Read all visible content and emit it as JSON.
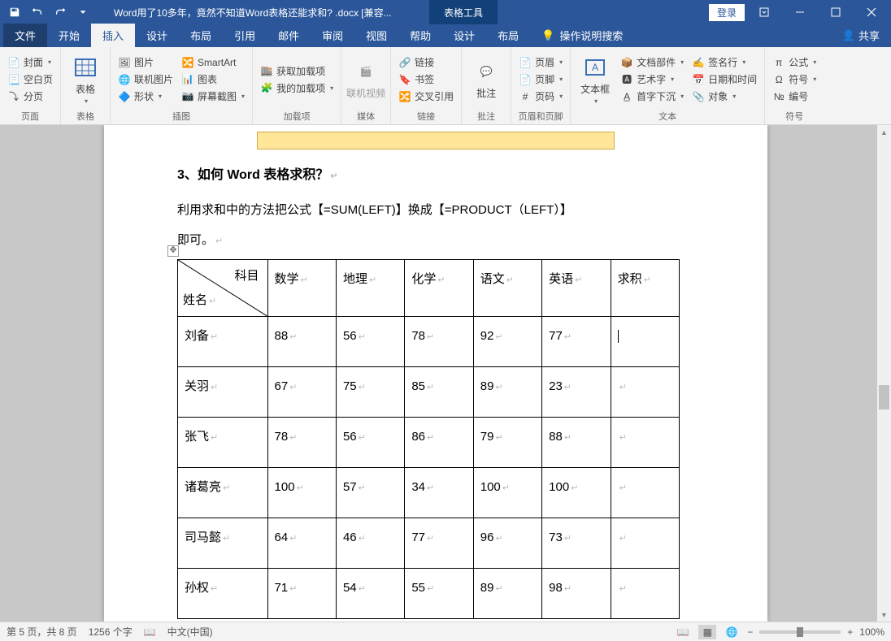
{
  "title_bar": {
    "document_title": "Word用了10多年，竟然不知道Word表格还能求和? .docx [兼容...",
    "context_tab": "表格工具",
    "login": "登录"
  },
  "tabs": {
    "file": "文件",
    "home": "开始",
    "insert": "插入",
    "design": "设计",
    "layout": "布局",
    "references": "引用",
    "mailings": "邮件",
    "review": "审阅",
    "view": "视图",
    "help": "帮助",
    "tbl_design": "设计",
    "tbl_layout": "布局",
    "tell_me": "操作说明搜索",
    "share": "共享"
  },
  "ribbon": {
    "pages": {
      "cover": "封面",
      "blank": "空白页",
      "break": "分页",
      "label": "页面"
    },
    "tables": {
      "table": "表格",
      "label": "表格"
    },
    "illustrations": {
      "picture": "图片",
      "online_pic": "联机图片",
      "shapes": "形状",
      "smartart": "SmartArt",
      "chart": "图表",
      "screenshot": "屏幕截图",
      "label": "插图"
    },
    "addins": {
      "get": "获取加载项",
      "my": "我的加载项",
      "label": "加载项"
    },
    "media": {
      "video": "联机视频",
      "label": "媒体"
    },
    "links": {
      "link": "链接",
      "bookmark": "书签",
      "crossref": "交叉引用",
      "label": "链接"
    },
    "comments": {
      "comment": "批注",
      "label": "批注"
    },
    "headerfooter": {
      "header": "页眉",
      "footer": "页脚",
      "pagenum": "页码",
      "label": "页眉和页脚"
    },
    "text": {
      "textbox": "文本框",
      "parts": "文档部件",
      "wordart": "艺术字",
      "dropcap": "首字下沉",
      "sigline": "签名行",
      "datetime": "日期和时间",
      "object": "对象",
      "label": "文本"
    },
    "symbols": {
      "equation": "公式",
      "symbol": "符号",
      "number": "编号",
      "label": "符号"
    }
  },
  "document": {
    "heading": "3、如何 Word 表格求积？",
    "para1": "利用求和中的方法把公式【=SUM(LEFT)】换成【=PRODUCT（LEFT）】",
    "para2": "即可。",
    "table": {
      "header_diag": {
        "top": "科目",
        "bottom": "姓名"
      },
      "cols": [
        "数学",
        "地理",
        "化学",
        "语文",
        "英语",
        "求积"
      ],
      "rows": [
        {
          "name": "刘备",
          "vals": [
            "88",
            "56",
            "78",
            "92",
            "77",
            ""
          ]
        },
        {
          "name": "关羽",
          "vals": [
            "67",
            "75",
            "85",
            "89",
            "23",
            ""
          ]
        },
        {
          "name": "张飞",
          "vals": [
            "78",
            "56",
            "86",
            "79",
            "88",
            ""
          ]
        },
        {
          "name": "诸葛亮",
          "vals": [
            "100",
            "57",
            "34",
            "100",
            "100",
            ""
          ]
        },
        {
          "name": "司马懿",
          "vals": [
            "64",
            "46",
            "77",
            "96",
            "73",
            ""
          ]
        },
        {
          "name": "孙权",
          "vals": [
            "71",
            "54",
            "55",
            "89",
            "98",
            ""
          ]
        }
      ]
    }
  },
  "status": {
    "page": "第 5 页，共 8 页",
    "words": "1256 个字",
    "lang": "中文(中国)",
    "zoom": "100%"
  },
  "colors": {
    "accent": "#2b579a",
    "ribbon_bg": "#f3f3f3",
    "banner_bg": "#ffe699"
  }
}
